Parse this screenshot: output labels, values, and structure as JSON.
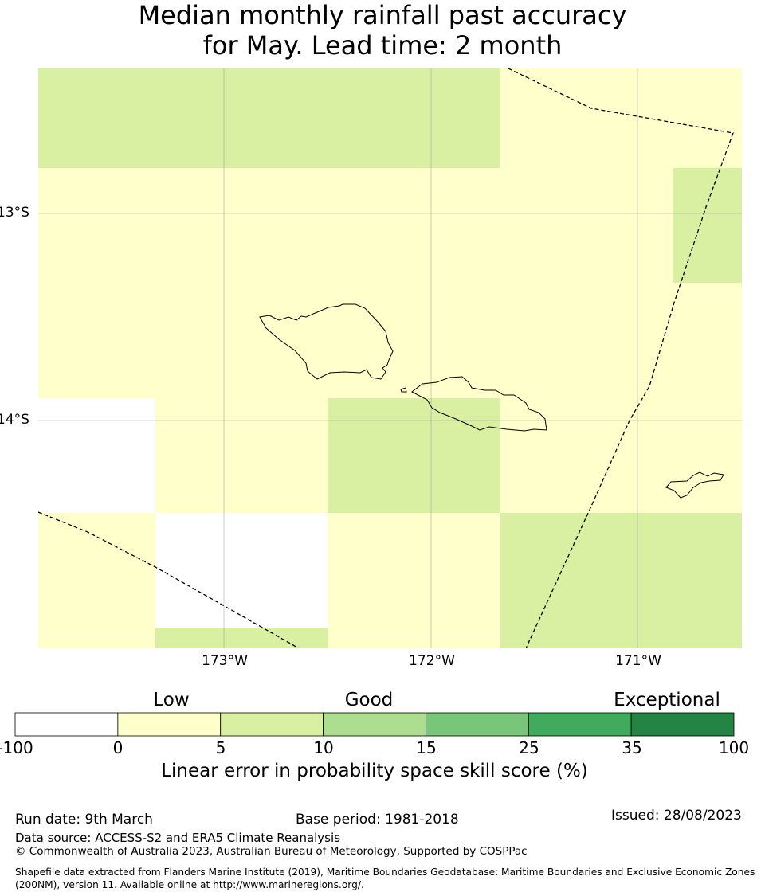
{
  "title": {
    "line1": "Median monthly rainfall past accuracy",
    "line2": "for May. Lead time: 2 month"
  },
  "map": {
    "lon_labels": [
      "173°W",
      "172°W",
      "171°W"
    ],
    "lat_labels": [
      "13°S",
      "14°S"
    ],
    "colors": {
      "white": "#ffffff",
      "pale_yellow": "#ffffcc",
      "light_green": "#d9f0a3"
    }
  },
  "colorbar": {
    "categories": [
      "Low",
      "Good",
      "Exceptional"
    ],
    "ticks": [
      "-100",
      "0",
      "5",
      "10",
      "15",
      "25",
      "35",
      "100"
    ],
    "colors": [
      "#ffffff",
      "#ffffcc",
      "#d9f0a3",
      "#addd8e",
      "#78c679",
      "#41ab5d",
      "#238443"
    ],
    "label": "Linear error in probability space skill score (%)"
  },
  "footer": {
    "run_date": "Run date: 9th March",
    "base_period": "Base period: 1981-2018",
    "issued": "Issued: 28/08/2023",
    "data_source": "Data source: ACCESS-S2 and ERA5 Climate Reanalysis",
    "copyright": "© Commonwealth of Australia 2023, Australian Bureau of Meteorology, Supported by COSPPac",
    "shapefile_line1": "Shapefile data extracted from Flanders Marine Institute (2019), Maritime Boundaries Geodatabase: Maritime Boundaries and Exclusive Economic Zones",
    "shapefile_line2": "(200NM), version 11. Available online at http://www.marineregions.org/."
  }
}
